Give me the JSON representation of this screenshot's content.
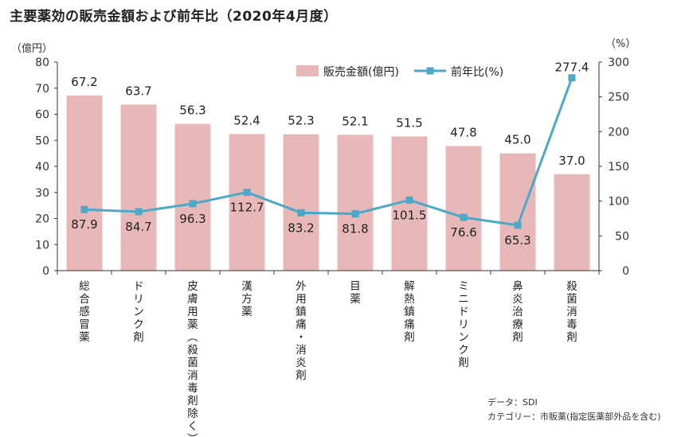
{
  "title": "主要薬効の販売金額および前年比（2020年4月度）",
  "chart_data": {
    "type": "bar",
    "title": "主要薬効の販売金額および前年比（2020年4月度）",
    "left_unit": "（億円）",
    "right_unit": "（%）",
    "categories": [
      "総合感冒薬",
      "ドリンク剤",
      "皮膚用薬（殺菌消毒剤除く）",
      "漢方薬",
      "外用鎮痛・消炎剤",
      "目薬",
      "解熱鎮痛剤",
      "ミニドリンク剤",
      "鼻炎治療剤",
      "殺菌消毒剤"
    ],
    "series": [
      {
        "name": "販売金額(億円)",
        "type": "bar",
        "axis": "left",
        "values": [
          67.2,
          63.7,
          56.3,
          52.4,
          52.3,
          52.1,
          51.5,
          47.8,
          45.0,
          37.0
        ],
        "labels": [
          "67.2",
          "63.7",
          "56.3",
          "52.4",
          "52.3",
          "52.1",
          "51.5",
          "47.8",
          "45.0",
          "37.0"
        ],
        "color": "#e8b8b8"
      },
      {
        "name": "前年比(%)",
        "type": "line",
        "axis": "right",
        "values": [
          87.9,
          84.7,
          96.3,
          112.7,
          83.2,
          81.8,
          101.5,
          76.6,
          65.3,
          277.4
        ],
        "labels": [
          "87.9",
          "84.7",
          "96.3",
          "112.7",
          "83.2",
          "81.8",
          "101.5",
          "76.6",
          "65.3",
          "277.4"
        ],
        "color": "#4aa9c9"
      }
    ],
    "ylim_left": [
      0,
      80
    ],
    "ylim_right": [
      0,
      300
    ],
    "left_ticks": [
      "0",
      "10",
      "20",
      "30",
      "40",
      "50",
      "60",
      "70",
      "80"
    ],
    "right_ticks": [
      "0",
      "50",
      "100",
      "150",
      "200",
      "250",
      "300"
    ],
    "legend_position": "top-center",
    "grid": false
  },
  "source": {
    "data_line": "データ：SDI",
    "category_line": "カテゴリー：市販薬(指定医薬部外品を含む)"
  }
}
